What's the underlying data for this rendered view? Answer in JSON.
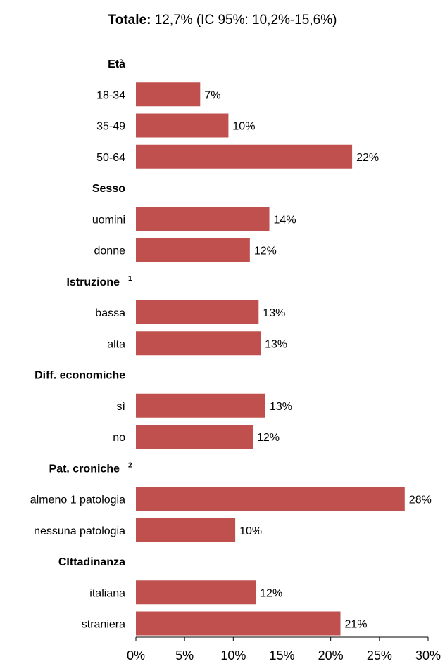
{
  "chart_data": {
    "type": "bar",
    "orientation": "horizontal",
    "title_bold": "Totale:",
    "title_rest": " 12,7% (IC 95%: 10,2%-15,6%)",
    "xlim": [
      0,
      30
    ],
    "x_ticks": [
      "0%",
      "5%",
      "10%",
      "15%",
      "20%",
      "25%",
      "30%"
    ],
    "x_tick_values": [
      0,
      5,
      10,
      15,
      20,
      25,
      30
    ],
    "bar_color": "#c0504d",
    "groups": [
      {
        "label": "Età",
        "sup": "",
        "categories": [
          {
            "label": "18-34",
            "value": 6.6,
            "value_label": "7%"
          },
          {
            "label": "35-49",
            "value": 9.5,
            "value_label": "10%"
          },
          {
            "label": "50-64",
            "value": 22.2,
            "value_label": "22%"
          }
        ]
      },
      {
        "label": "Sesso",
        "sup": "",
        "categories": [
          {
            "label": "uomini",
            "value": 13.7,
            "value_label": "14%"
          },
          {
            "label": "donne",
            "value": 11.7,
            "value_label": "12%"
          }
        ]
      },
      {
        "label": "Istruzione",
        "sup": "1",
        "categories": [
          {
            "label": "bassa",
            "value": 12.6,
            "value_label": "13%"
          },
          {
            "label": "alta",
            "value": 12.8,
            "value_label": "13%"
          }
        ]
      },
      {
        "label": "Diff. economiche",
        "sup": "",
        "categories": [
          {
            "label": "sì",
            "value": 13.3,
            "value_label": "13%"
          },
          {
            "label": "no",
            "value": 12.0,
            "value_label": "12%"
          }
        ]
      },
      {
        "label": "Pat. croniche",
        "sup": "2",
        "categories": [
          {
            "label": "almeno 1 patologia",
            "value": 27.6,
            "value_label": "28%"
          },
          {
            "label": "nessuna patologia",
            "value": 10.2,
            "value_label": "10%"
          }
        ]
      },
      {
        "label": "CIttadinanza",
        "sup": "",
        "categories": [
          {
            "label": "italiana",
            "value": 12.3,
            "value_label": "12%"
          },
          {
            "label": "straniera",
            "value": 21.0,
            "value_label": "21%"
          }
        ]
      }
    ]
  }
}
